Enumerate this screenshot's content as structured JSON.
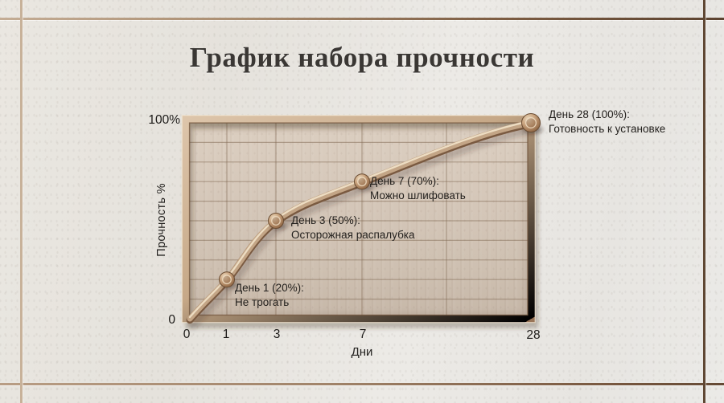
{
  "title": "График набора прочности",
  "chart_data": {
    "type": "line",
    "title": "График набора прочности",
    "xlabel": "Дни",
    "ylabel": "Прочность %",
    "x": [
      0,
      1,
      3,
      7,
      28
    ],
    "values": [
      0,
      20,
      50,
      70,
      100
    ],
    "x_tick_labels": [
      "0",
      "1",
      "3",
      "7",
      "28"
    ],
    "y_tick_labels": [
      "0",
      "100%"
    ],
    "ylim": [
      0,
      100
    ],
    "grid": true,
    "x_scale": "non-linear, compressed toward later days",
    "legend_position": "none",
    "annotations": [
      {
        "day": 1,
        "percent": 20,
        "line1": "День 1 (20%):",
        "line2": "Не трогать"
      },
      {
        "day": 3,
        "percent": 50,
        "line1": "День 3 (50%):",
        "line2": "Осторожная распалубка"
      },
      {
        "day": 7,
        "percent": 70,
        "line1": "День 7 (70%):",
        "line2": "Можно шлифовать"
      },
      {
        "day": 28,
        "percent": 100,
        "line1": "День 28 (100%):",
        "line2": "Готовность к установке"
      }
    ]
  },
  "colors": {
    "frame_bronze": "#b08a68",
    "plot_background": "#d3c5b7",
    "tile_grout": "#6b4e37",
    "title_text": "#3a3734",
    "label_text": "#23201d"
  }
}
